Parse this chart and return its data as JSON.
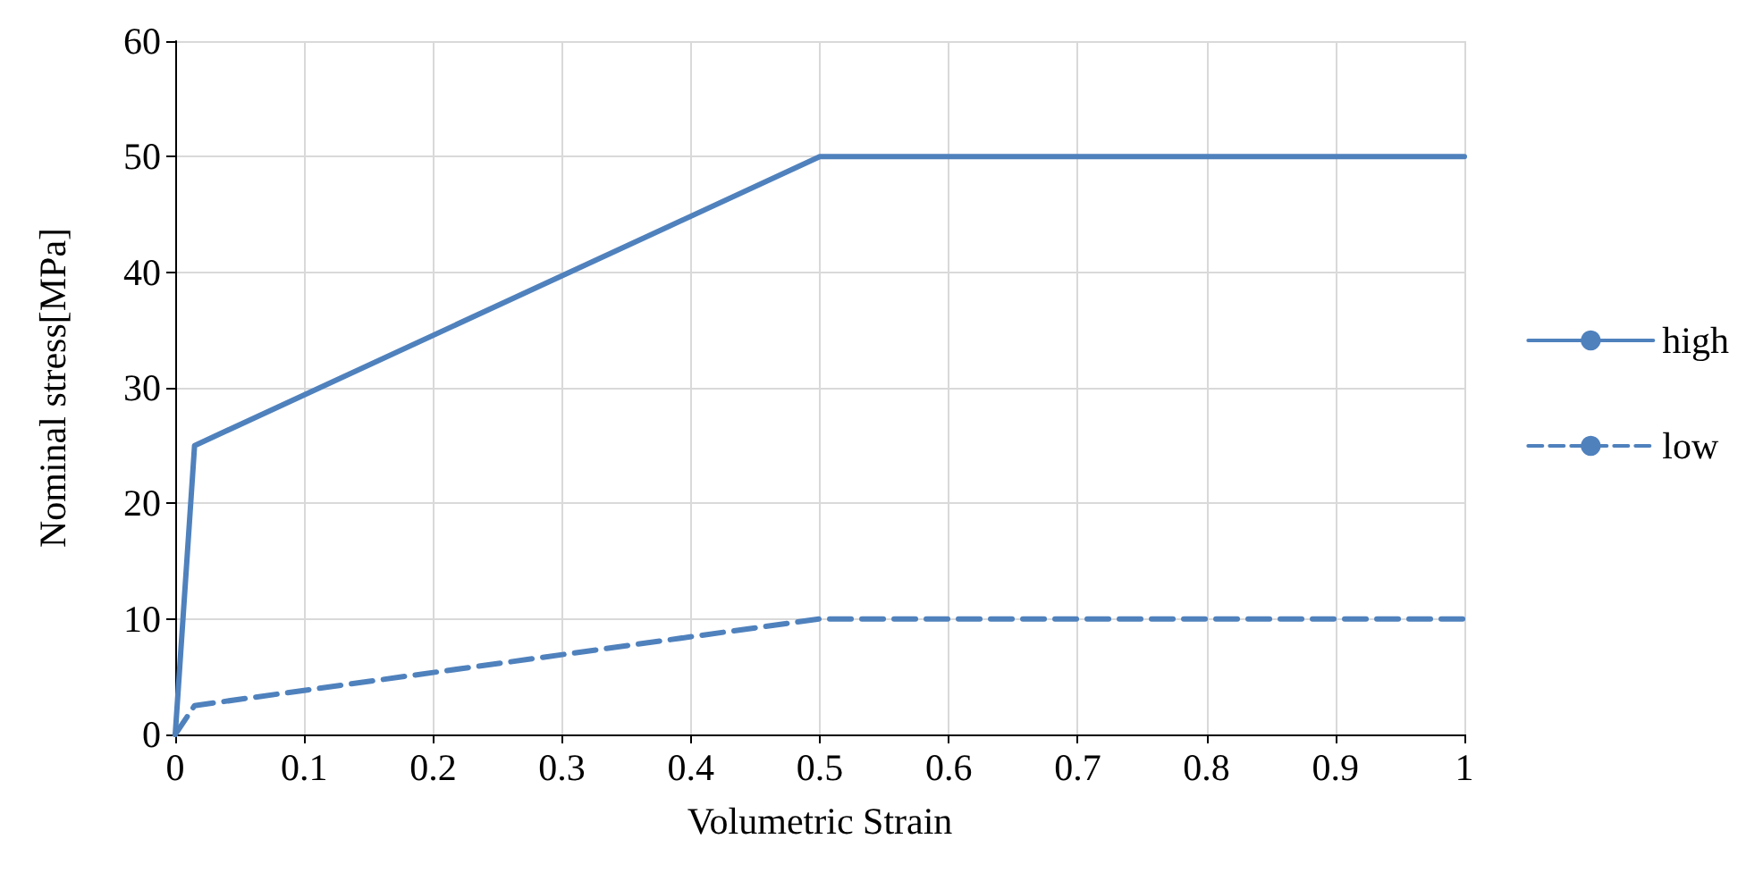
{
  "chart_data": {
    "type": "line",
    "xlabel": "Volumetric Strain",
    "ylabel": "Nominal stress[MPa]",
    "xlim": [
      0,
      1
    ],
    "xticks": [
      0,
      0.1,
      0.2,
      0.3,
      0.4,
      0.5,
      0.6,
      0.7,
      0.8,
      0.9,
      1
    ],
    "ylim": [
      0,
      60
    ],
    "yticks": [
      0,
      10,
      20,
      30,
      40,
      50,
      60
    ],
    "grid": true,
    "legend": "right",
    "marker": "none",
    "series": [
      {
        "name": "high",
        "color": "#4f81bd",
        "x": [
          0,
          0.015,
          0.5,
          1
        ],
        "values": [
          0,
          25,
          50,
          50
        ],
        "line_style": "solid"
      },
      {
        "name": "low",
        "color": "#4f81bd",
        "x": [
          0,
          0.015,
          0.5,
          1
        ],
        "values": [
          0,
          2.5,
          10,
          10
        ],
        "line_style": "dashed"
      }
    ]
  }
}
